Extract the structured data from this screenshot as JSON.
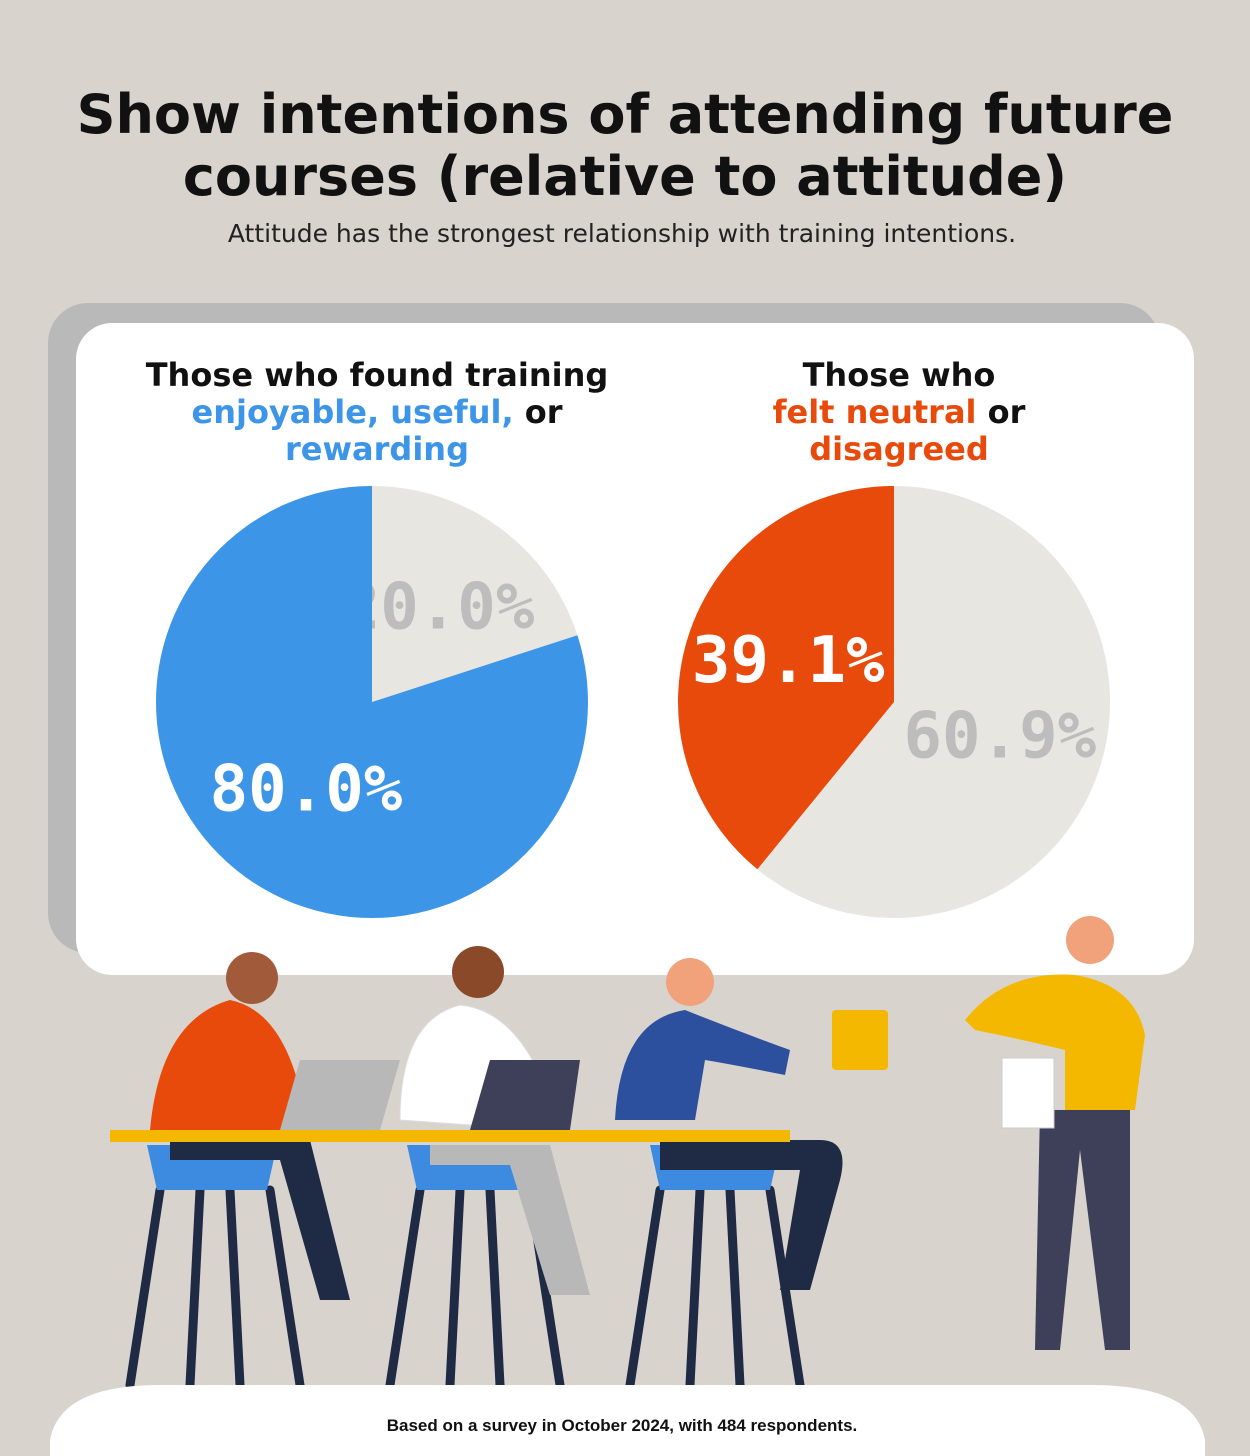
{
  "title": [
    "Show intentions of attending future",
    "courses (relative to attitude)"
  ],
  "subtitle": "Attitude has the strongest relationship with training intentions.",
  "note": "Based on a survey in October 2024, with 484 respondents.",
  "chart_data": [
    {
      "type": "pie",
      "title": [
        "Those who found training",
        "enjoyable, useful,",
        "or",
        "rewarding"
      ],
      "values": [
        20.0,
        80.0
      ],
      "value_labels": [
        "20.0%",
        "80.0%"
      ],
      "colors": [
        "#e8e6e1",
        "#3d95e8"
      ],
      "label_colors": [
        "#bdbdbd",
        "#ffffff"
      ]
    },
    {
      "type": "pie",
      "title": [
        "Those who",
        "felt neutral",
        "or",
        "disagreed"
      ],
      "values": [
        60.9,
        39.1
      ],
      "value_labels": [
        "60.9%",
        "39.1%"
      ],
      "colors": [
        "#e8e6e1",
        "#e84a0c"
      ],
      "label_colors": [
        "#bdbdbd",
        "#ffffff"
      ]
    }
  ]
}
